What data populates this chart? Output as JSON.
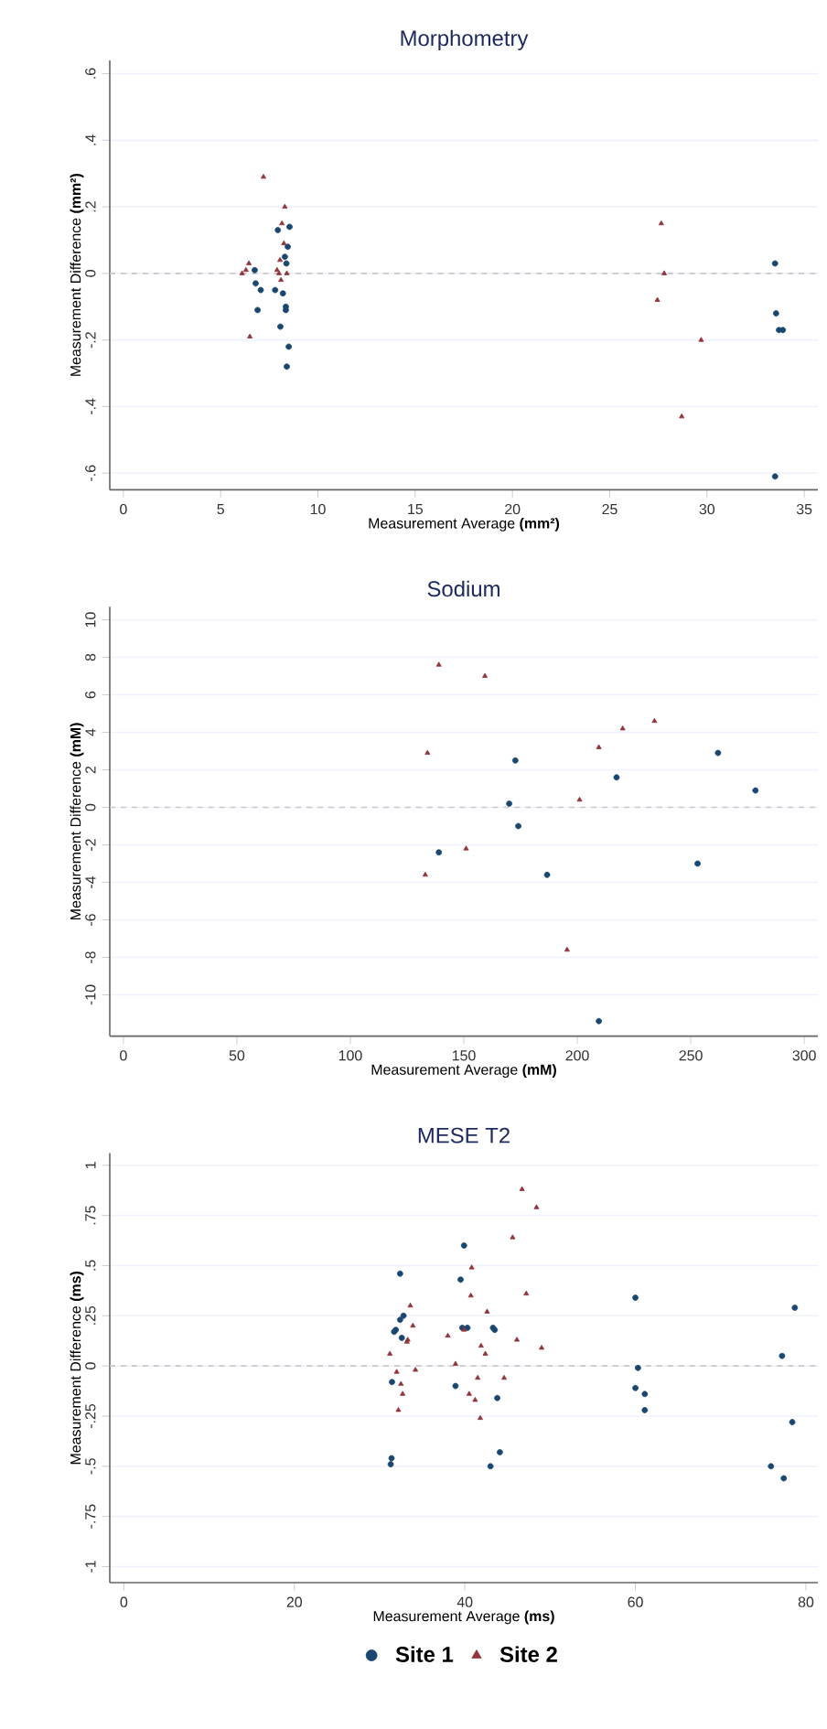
{
  "chart_data": [
    {
      "type": "scatter",
      "title": "Morphometry",
      "xlabel": "Measurement Average **(mm²)**",
      "ylabel": "Measurement Difference **(mm²)**",
      "xlim": [
        -0.7,
        35.7
      ],
      "ylim": [
        -0.65,
        0.64
      ],
      "xticks": [
        0,
        5,
        10,
        15,
        20,
        25,
        30,
        35
      ],
      "yticks": [
        {
          "value": -0.6,
          "label": "-.6"
        },
        {
          "value": -0.4,
          "label": "-.4"
        },
        {
          "value": -0.2,
          "label": "-.2"
        },
        0,
        {
          "value": 0.2,
          "label": ".2"
        },
        {
          "value": 0.4,
          "label": ".4"
        },
        {
          "value": 0.6,
          "label": ".6"
        }
      ],
      "grid": "y",
      "ref_lines": [
        {
          "axis": "y",
          "value": 0,
          "color": "#c8c8c8",
          "line_style": "dashed"
        }
      ],
      "series": [
        {
          "color": "#1a476f",
          "marker": "circle",
          "x": [
            6.75,
            6.8,
            7.06,
            6.9,
            7.94,
            8.54,
            8.45,
            8.3,
            8.38,
            7.8,
            8.2,
            8.35,
            8.35,
            8.07,
            8.5,
            8.4,
            33.5,
            33.55,
            33.7,
            33.9,
            33.5
          ],
          "values": [
            0.01,
            -0.03,
            -0.05,
            -0.11,
            0.13,
            0.14,
            0.08,
            0.05,
            0.03,
            -0.05,
            -0.06,
            -0.1,
            -0.11,
            -0.16,
            -0.22,
            -0.28,
            0.03,
            -0.12,
            -0.17,
            -0.17,
            -0.61
          ]
        },
        {
          "color": "#90353b",
          "marker": "triangle",
          "x": [
            7.2,
            8.3,
            8.15,
            8.25,
            8.05,
            7.9,
            8.0,
            8.4,
            8.1,
            6.1,
            6.3,
            6.45,
            6.5,
            27.65,
            27.8,
            27.45,
            29.7,
            28.7
          ],
          "values": [
            0.29,
            0.2,
            0.15,
            0.09,
            0.04,
            0.01,
            0.0,
            0.0,
            -0.02,
            0.0,
            0.01,
            0.03,
            -0.19,
            0.15,
            0.0,
            -0.08,
            -0.2,
            -0.43
          ]
        }
      ]
    },
    {
      "type": "scatter",
      "title": "Sodium",
      "xlabel": "Measurement Average **(mM)**",
      "ylabel": "Measurement Difference **(mM)**",
      "xlim": [
        -6,
        306
      ],
      "ylim": [
        -12.2,
        10.7
      ],
      "xticks": [
        0,
        50,
        100,
        150,
        200,
        250,
        300
      ],
      "yticks": [
        -10,
        -8,
        -6,
        -4,
        -2,
        0,
        2,
        4,
        6,
        8,
        10
      ],
      "grid": "y",
      "ref_lines": [
        {
          "axis": "y",
          "value": 0,
          "color": "#c8c8c8",
          "line_style": "dashed"
        }
      ],
      "series": [
        {
          "color": "#1a476f",
          "marker": "circle",
          "x": [
            170,
            172.7,
            174,
            139,
            186.7,
            209.5,
            217.3,
            253,
            262,
            278.5
          ],
          "values": [
            0.2,
            2.5,
            -1.0,
            -2.4,
            -3.6,
            -11.4,
            1.6,
            -3.0,
            2.9,
            0.9
          ]
        },
        {
          "color": "#90353b",
          "marker": "triangle",
          "x": [
            139,
            159.3,
            134,
            133,
            151,
            201,
            209.5,
            220,
            234,
            195.5
          ],
          "values": [
            7.6,
            7.0,
            2.9,
            -3.6,
            -2.2,
            0.4,
            3.2,
            4.2,
            4.6,
            -7.6
          ]
        }
      ]
    },
    {
      "type": "scatter",
      "title": "MESE T2",
      "xlabel": "Measurement Average **(ms)**",
      "ylabel": "Measurement Difference **(ms)**",
      "xlim": [
        -1.65,
        81.4
      ],
      "ylim": [
        -1.08,
        1.06
      ],
      "xticks": [
        0,
        20,
        40,
        60,
        80
      ],
      "yticks": [
        {
          "value": -1,
          "label": "-1"
        },
        {
          "value": -0.75,
          "label": "-.75"
        },
        {
          "value": -0.5,
          "label": "-.5"
        },
        {
          "value": -0.25,
          "label": "-.25"
        },
        0,
        {
          "value": 0.25,
          "label": ".25"
        },
        {
          "value": 0.5,
          "label": ".5"
        },
        {
          "value": 0.75,
          "label": ".75"
        },
        1
      ],
      "grid": "y",
      "legend": "bottom",
      "ref_lines": [
        {
          "axis": "y",
          "value": 0,
          "color": "#c8c8c8",
          "line_style": "dashed"
        }
      ],
      "series": [
        {
          "name": "Site 1",
          "color": "#1a476f",
          "marker": "circle",
          "x": [
            32.4,
            31.7,
            31.9,
            32.4,
            32.8,
            32.6,
            31.45,
            31.4,
            31.3,
            39.9,
            39.5,
            39.7,
            40.3,
            43.3,
            43.5,
            38.9,
            43.8,
            44.1,
            43.0,
            60,
            60.3,
            60,
            61.1,
            61.1,
            78.7,
            77.2,
            78.4,
            75.9,
            77.4
          ],
          "values": [
            0.46,
            0.17,
            0.18,
            0.23,
            0.25,
            0.14,
            -0.08,
            -0.46,
            -0.49,
            0.6,
            0.43,
            0.19,
            0.19,
            0.19,
            0.18,
            -0.1,
            -0.16,
            -0.43,
            -0.5,
            0.34,
            -0.01,
            -0.11,
            -0.14,
            -0.22,
            0.29,
            0.05,
            -0.28,
            -0.5,
            -0.56
          ]
        },
        {
          "name": "Site 2",
          "color": "#90353b",
          "marker": "triangle",
          "x": [
            31.2,
            32,
            32.5,
            32.7,
            32.2,
            33.3,
            33.2,
            33.6,
            33.9,
            34.2,
            38,
            38.9,
            39.9,
            40.8,
            40.7,
            42.6,
            41.9,
            42.4,
            41.5,
            40.5,
            41.2,
            41.8,
            44.6,
            45.6,
            46.7,
            48.4,
            47.2,
            46.1,
            49
          ],
          "values": [
            0.06,
            -0.03,
            -0.09,
            -0.14,
            -0.22,
            0.13,
            0.12,
            0.3,
            0.2,
            -0.02,
            0.15,
            0.01,
            0.18,
            0.49,
            0.35,
            0.27,
            0.1,
            0.06,
            -0.06,
            -0.14,
            -0.17,
            -0.26,
            -0.06,
            0.64,
            0.88,
            0.79,
            0.36,
            0.13,
            0.09
          ]
        }
      ]
    }
  ]
}
